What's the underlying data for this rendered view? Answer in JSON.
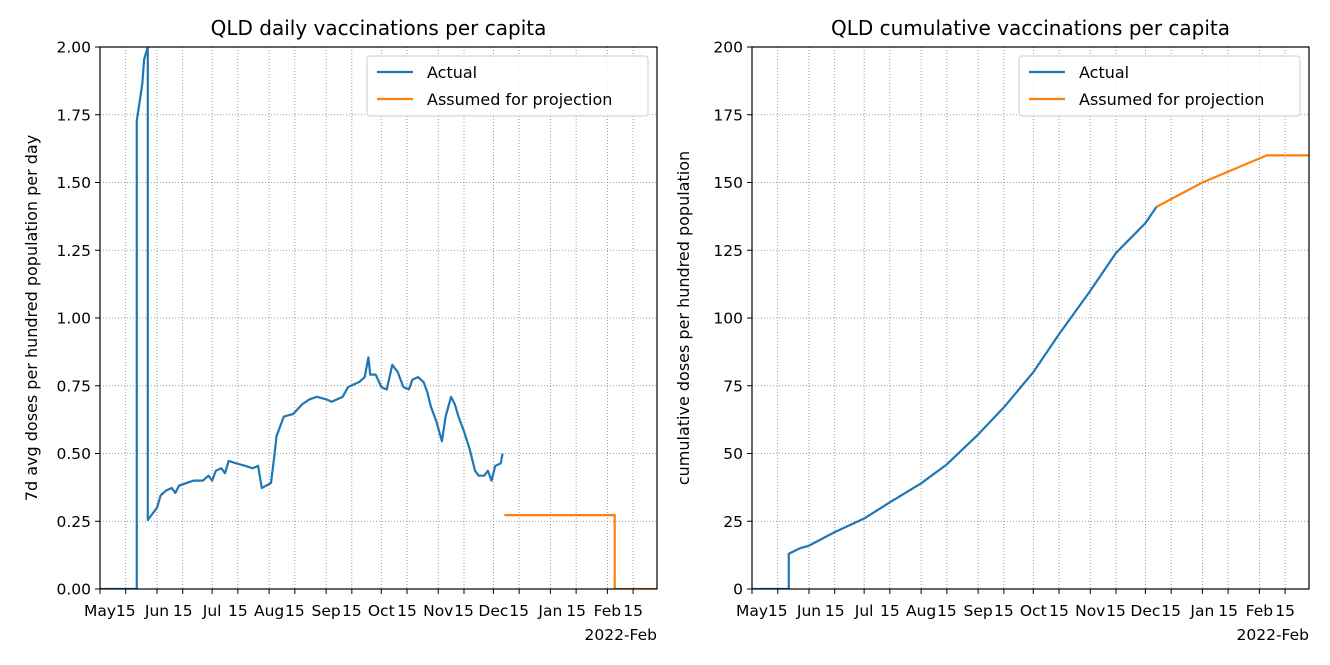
{
  "chart_data": [
    {
      "type": "line",
      "title": "QLD daily vaccinations per capita",
      "xlabel": "",
      "ylabel": "7d avg doses per hundred population per day",
      "x_tick_labels": [
        "May",
        "15",
        "Jun",
        "15",
        "Jul",
        "15",
        "Aug",
        "15",
        "Sep",
        "15",
        "Oct",
        "15",
        "Nov",
        "15",
        "Dec",
        "15",
        "Jan",
        "15",
        "Feb",
        "15"
      ],
      "x_offset_label": "2022-Feb",
      "xlim": [
        "2021-05-01",
        "2022-02-28"
      ],
      "ylim": [
        0,
        2.2
      ],
      "y_ticks": [
        "0.00",
        "0.25",
        "0.50",
        "0.75",
        "1.00",
        "1.25",
        "1.50",
        "1.75",
        "2.00"
      ],
      "grid": true,
      "legend_position": "upper right",
      "series": [
        {
          "name": "Actual",
          "color": "#1f77b4",
          "points": [
            [
              "2021-05-01",
              0
            ],
            [
              "2021-05-21",
              0
            ],
            [
              "2021-05-21",
              1.9
            ],
            [
              "2021-05-22",
              1.95
            ],
            [
              "2021-05-24",
              2.05
            ],
            [
              "2021-05-25",
              2.15
            ],
            [
              "2021-05-27",
              2.2
            ],
            [
              "2021-05-27",
              0.28
            ],
            [
              "2021-05-29",
              0.3
            ],
            [
              "2021-06-01",
              0.33
            ],
            [
              "2021-06-03",
              0.38
            ],
            [
              "2021-06-06",
              0.4
            ],
            [
              "2021-06-09",
              0.41
            ],
            [
              "2021-06-11",
              0.39
            ],
            [
              "2021-06-13",
              0.42
            ],
            [
              "2021-06-17",
              0.43
            ],
            [
              "2021-06-21",
              0.44
            ],
            [
              "2021-06-26",
              0.44
            ],
            [
              "2021-06-29",
              0.46
            ],
            [
              "2021-07-01",
              0.44
            ],
            [
              "2021-07-03",
              0.48
            ],
            [
              "2021-07-06",
              0.49
            ],
            [
              "2021-07-08",
              0.47
            ],
            [
              "2021-07-10",
              0.52
            ],
            [
              "2021-07-14",
              0.51
            ],
            [
              "2021-07-19",
              0.5
            ],
            [
              "2021-07-23",
              0.49
            ],
            [
              "2021-07-26",
              0.5
            ],
            [
              "2021-07-28",
              0.41
            ],
            [
              "2021-08-02",
              0.43
            ],
            [
              "2021-08-04",
              0.55
            ],
            [
              "2021-08-05",
              0.62
            ],
            [
              "2021-08-09",
              0.7
            ],
            [
              "2021-08-14",
              0.71
            ],
            [
              "2021-08-19",
              0.75
            ],
            [
              "2021-08-23",
              0.77
            ],
            [
              "2021-08-27",
              0.78
            ],
            [
              "2021-09-01",
              0.77
            ],
            [
              "2021-09-04",
              0.76
            ],
            [
              "2021-09-10",
              0.78
            ],
            [
              "2021-09-13",
              0.82
            ],
            [
              "2021-09-19",
              0.84
            ],
            [
              "2021-09-22",
              0.86
            ],
            [
              "2021-09-24",
              0.94
            ],
            [
              "2021-09-25",
              0.87
            ],
            [
              "2021-09-28",
              0.87
            ],
            [
              "2021-10-01",
              0.82
            ],
            [
              "2021-10-04",
              0.81
            ],
            [
              "2021-10-07",
              0.91
            ],
            [
              "2021-10-10",
              0.88
            ],
            [
              "2021-10-13",
              0.82
            ],
            [
              "2021-10-16",
              0.81
            ],
            [
              "2021-10-18",
              0.85
            ],
            [
              "2021-10-21",
              0.86
            ],
            [
              "2021-10-24",
              0.84
            ],
            [
              "2021-10-26",
              0.8
            ],
            [
              "2021-10-28",
              0.74
            ],
            [
              "2021-10-31",
              0.68
            ],
            [
              "2021-11-03",
              0.6
            ],
            [
              "2021-11-05",
              0.7
            ],
            [
              "2021-11-08",
              0.78
            ],
            [
              "2021-11-10",
              0.75
            ],
            [
              "2021-11-12",
              0.7
            ],
            [
              "2021-11-15",
              0.64
            ],
            [
              "2021-11-18",
              0.57
            ],
            [
              "2021-11-21",
              0.48
            ],
            [
              "2021-11-23",
              0.46
            ],
            [
              "2021-11-26",
              0.46
            ],
            [
              "2021-11-28",
              0.48
            ],
            [
              "2021-11-30",
              0.44
            ],
            [
              "2021-12-02",
              0.5
            ],
            [
              "2021-12-05",
              0.51
            ],
            [
              "2021-12-06",
              0.55
            ]
          ]
        },
        {
          "name": "Assumed for projection",
          "color": "#ff7f0e",
          "points": [
            [
              "2021-12-07",
              0.3
            ],
            [
              "2022-02-05",
              0.3
            ],
            [
              "2022-02-05",
              0
            ],
            [
              "2022-02-28",
              0
            ]
          ]
        }
      ]
    },
    {
      "type": "line",
      "title": "QLD cumulative vaccinations per capita",
      "xlabel": "",
      "ylabel": "cumulative doses per hundred population",
      "x_tick_labels": [
        "May",
        "15",
        "Jun",
        "15",
        "Jul",
        "15",
        "Aug",
        "15",
        "Sep",
        "15",
        "Oct",
        "15",
        "Nov",
        "15",
        "Dec",
        "15",
        "Jan",
        "15",
        "Feb",
        "15"
      ],
      "x_offset_label": "2022-Feb",
      "xlim": [
        "2021-05-01",
        "2022-02-28"
      ],
      "ylim": [
        0,
        200
      ],
      "y_ticks": [
        "0",
        "25",
        "50",
        "75",
        "100",
        "125",
        "150",
        "175",
        "200"
      ],
      "grid": true,
      "legend_position": "upper right",
      "series": [
        {
          "name": "Actual",
          "color": "#1f77b4",
          "points": [
            [
              "2021-05-01",
              0
            ],
            [
              "2021-05-21",
              0
            ],
            [
              "2021-05-21",
              13
            ],
            [
              "2021-05-27",
              15
            ],
            [
              "2021-06-01",
              16
            ],
            [
              "2021-06-15",
              21
            ],
            [
              "2021-07-01",
              26
            ],
            [
              "2021-07-15",
              32
            ],
            [
              "2021-08-01",
              39
            ],
            [
              "2021-08-15",
              46
            ],
            [
              "2021-09-01",
              57
            ],
            [
              "2021-09-15",
              67
            ],
            [
              "2021-10-01",
              80
            ],
            [
              "2021-10-15",
              94
            ],
            [
              "2021-11-01",
              110
            ],
            [
              "2021-11-15",
              124
            ],
            [
              "2021-12-01",
              135
            ],
            [
              "2021-12-07",
              141
            ]
          ]
        },
        {
          "name": "Assumed for projection",
          "color": "#ff7f0e",
          "points": [
            [
              "2021-12-07",
              141
            ],
            [
              "2022-01-01",
              150
            ],
            [
              "2022-02-05",
              160
            ],
            [
              "2022-02-28",
              160
            ]
          ]
        }
      ]
    }
  ]
}
